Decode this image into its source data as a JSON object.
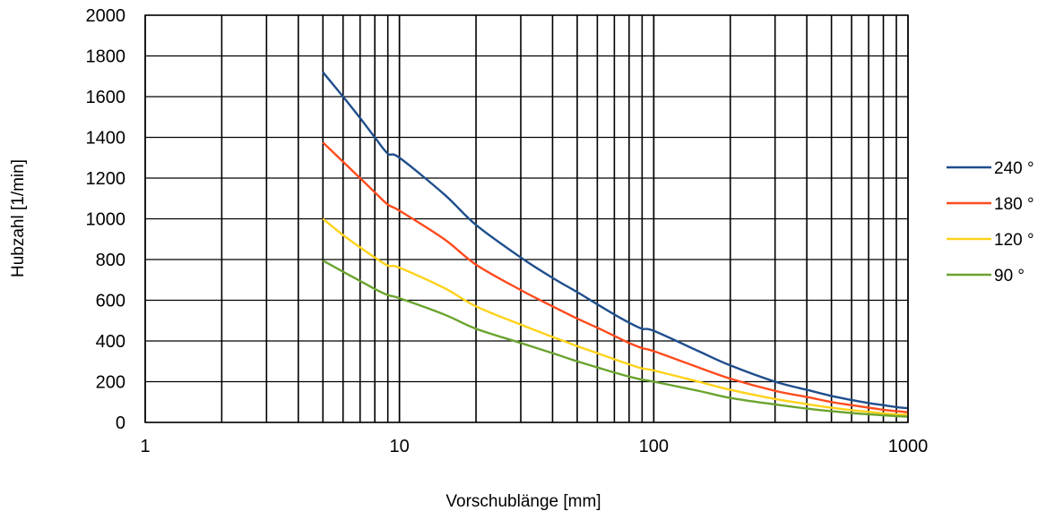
{
  "chart_data": {
    "type": "line",
    "title": "",
    "xlabel": "Vorschublänge [mm]",
    "ylabel": "Hubzahl [1/min]",
    "x_scale": "log",
    "xlim": [
      1,
      1000
    ],
    "ylim": [
      0,
      2000
    ],
    "x_ticks": [
      "1",
      "10",
      "100",
      "1000"
    ],
    "y_ticks": [
      "0",
      "200",
      "400",
      "600",
      "800",
      "1000",
      "1200",
      "1400",
      "1600",
      "1800",
      "2000"
    ],
    "grid": {
      "vertical_minor": true,
      "horizontal": true
    },
    "legend_position": "right",
    "x": [
      5,
      6,
      7,
      8,
      9,
      10,
      15,
      20,
      30,
      40,
      50,
      60,
      70,
      80,
      90,
      100,
      150,
      200,
      300,
      400,
      500,
      600,
      700,
      800,
      900,
      1000
    ],
    "series": [
      {
        "name": "240 °",
        "color": "#1f4e8c",
        "values": [
          1720,
          1600,
          1495,
          1400,
          1320,
          1300,
          1120,
          970,
          810,
          710,
          640,
          580,
          530,
          490,
          460,
          450,
          350,
          280,
          200,
          160,
          130,
          110,
          95,
          85,
          75,
          70
        ]
      },
      {
        "name": "180 °",
        "color": "#ff4a1c",
        "values": [
          1375,
          1280,
          1200,
          1130,
          1070,
          1040,
          900,
          775,
          650,
          570,
          510,
          465,
          425,
          390,
          365,
          350,
          270,
          215,
          155,
          125,
          100,
          85,
          72,
          62,
          55,
          50
        ]
      },
      {
        "name": "120 °",
        "color": "#ffd21a",
        "values": [
          1000,
          920,
          860,
          810,
          770,
          760,
          660,
          570,
          480,
          420,
          375,
          340,
          310,
          285,
          265,
          255,
          200,
          160,
          115,
          90,
          72,
          60,
          52,
          45,
          40,
          38
        ]
      },
      {
        "name": "90 °",
        "color": "#6aa32e",
        "values": [
          795,
          740,
          695,
          655,
          625,
          610,
          530,
          460,
          390,
          340,
          300,
          270,
          245,
          225,
          210,
          200,
          155,
          120,
          88,
          68,
          55,
          46,
          40,
          35,
          31,
          28
        ]
      }
    ]
  }
}
